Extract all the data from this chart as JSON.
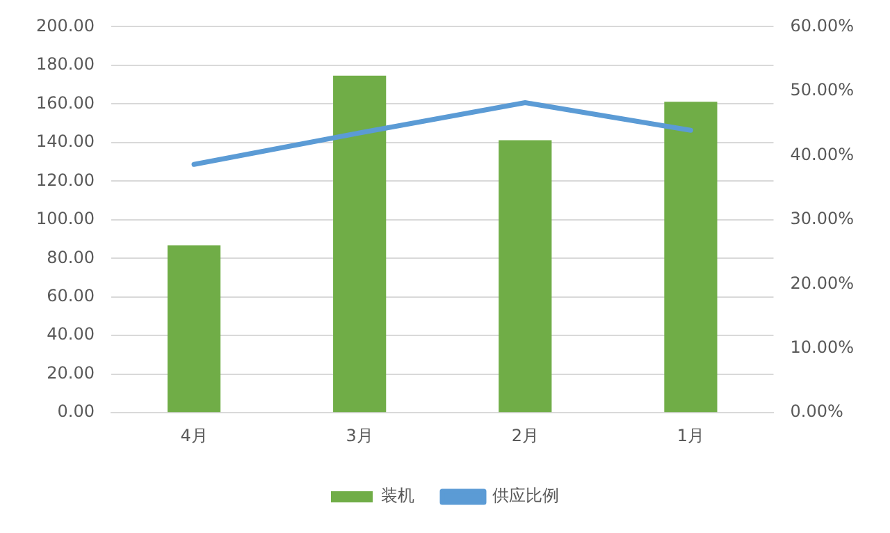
{
  "chart_data": {
    "type": "bar",
    "categories": [
      "4月",
      "3月",
      "2月",
      "1月"
    ],
    "series": [
      {
        "name": "装机",
        "color": "#70ad47",
        "values": [
          86.8,
          174.6,
          141.2,
          161.1
        ]
      },
      {
        "name": "供应比例",
        "type": "line",
        "axis": "y2",
        "color": "#5b9bd5",
        "values": [
          38.6,
          43.5,
          48.2,
          43.9
        ]
      }
    ],
    "ylim": [
      0,
      200
    ],
    "yticks": [
      {
        "value": 0,
        "label": "0.00"
      },
      {
        "value": 20,
        "label": "20.00"
      },
      {
        "value": 40,
        "label": "40.00"
      },
      {
        "value": 60,
        "label": "60.00"
      },
      {
        "value": 80,
        "label": "80.00"
      },
      {
        "value": 100,
        "label": "100.00"
      },
      {
        "value": 120,
        "label": "120.00"
      },
      {
        "value": 140,
        "label": "140.00"
      },
      {
        "value": 160,
        "label": "160.00"
      },
      {
        "value": 180,
        "label": "180.00"
      },
      {
        "value": 200,
        "label": "200.00"
      }
    ],
    "y2lim": [
      0,
      60
    ],
    "y2ticks": [
      {
        "value": 0,
        "label": "0.00%"
      },
      {
        "value": 10,
        "label": "10.00%"
      },
      {
        "value": 20,
        "label": "20.00%"
      },
      {
        "value": 30,
        "label": "30.00%"
      },
      {
        "value": 40,
        "label": "40.00%"
      },
      {
        "value": 50,
        "label": "50.00%"
      },
      {
        "value": 60,
        "label": "60.00%"
      }
    ],
    "grid": "y",
    "legend": "bottom",
    "marker": "none",
    "line_style": "solid"
  }
}
